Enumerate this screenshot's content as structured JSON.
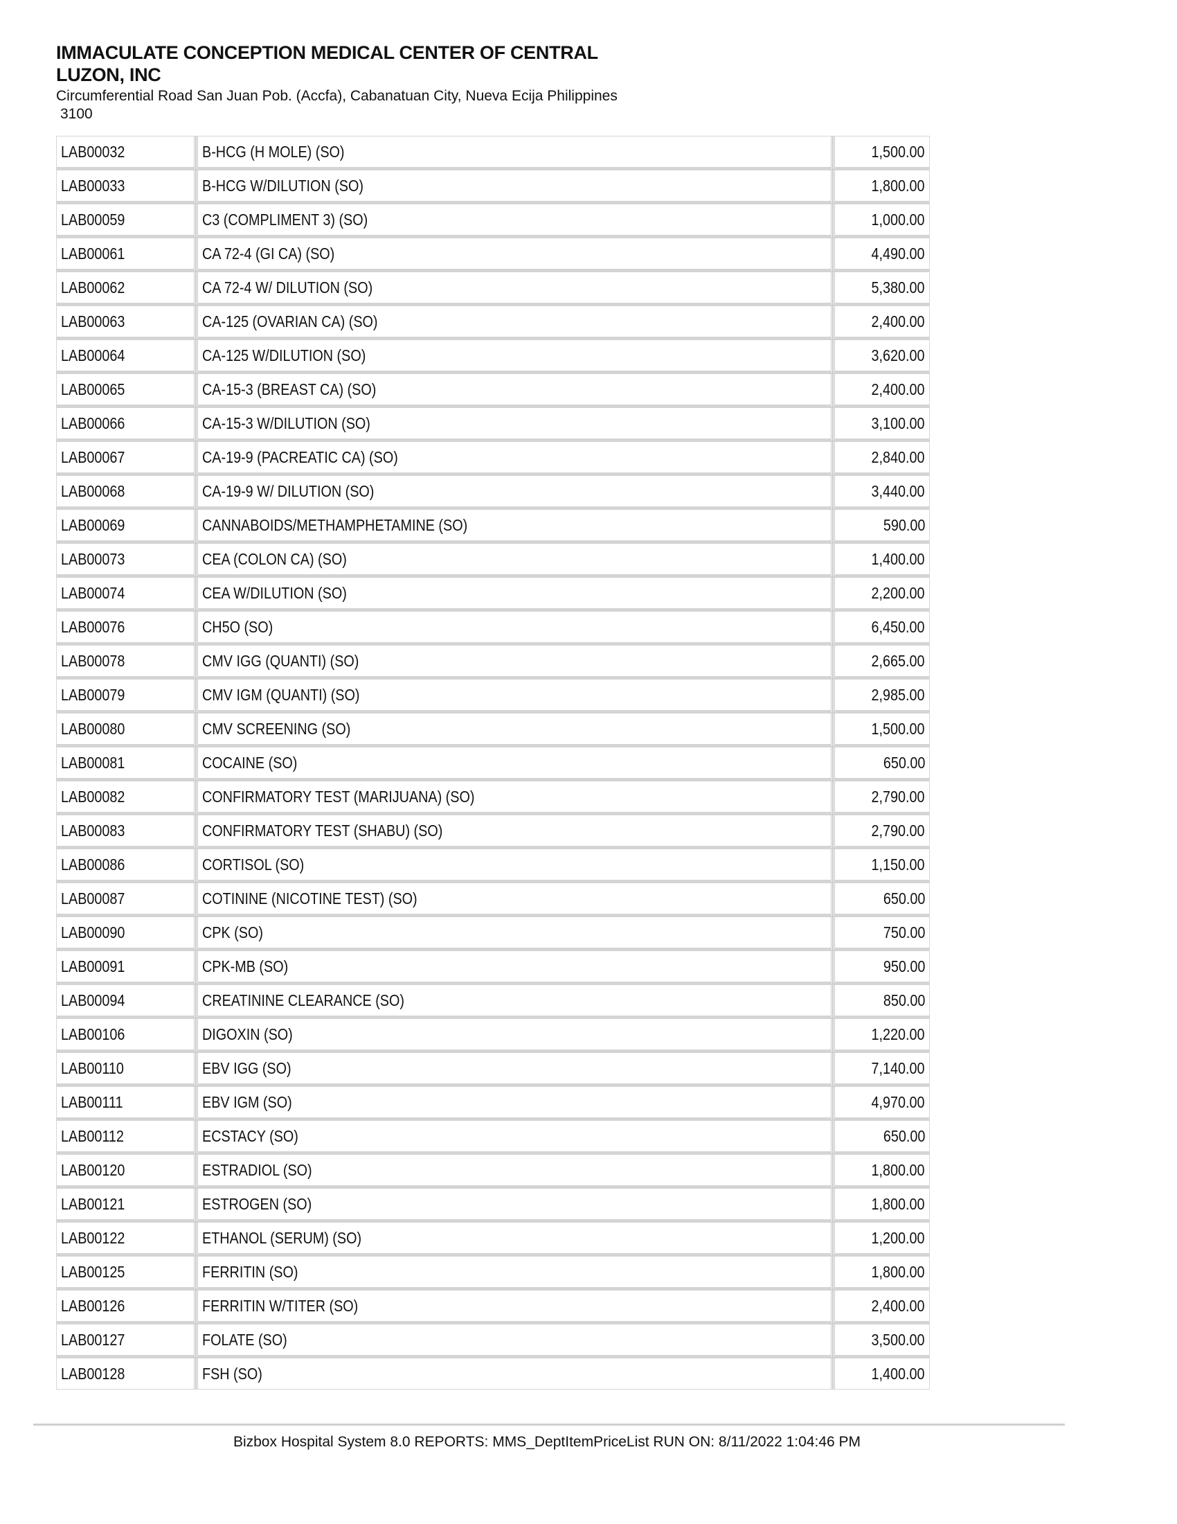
{
  "header": {
    "title": "IMMACULATE CONCEPTION MEDICAL CENTER OF CENTRAL LUZON, INC",
    "address": "Circumferential Road San Juan Pob. (Accfa), Cabanatuan City, Nueva Ecija Philippines",
    "zip": "3100"
  },
  "rows": [
    [
      "LAB00032",
      "B-HCG (H MOLE) (SO)",
      "1,500.00"
    ],
    [
      "LAB00033",
      "B-HCG W/DILUTION (SO)",
      "1,800.00"
    ],
    [
      "LAB00059",
      "C3 (COMPLIMENT 3) (SO)",
      "1,000.00"
    ],
    [
      "LAB00061",
      "CA 72-4 (GI CA) (SO)",
      "4,490.00"
    ],
    [
      "LAB00062",
      "CA 72-4 W/ DILUTION (SO)",
      "5,380.00"
    ],
    [
      "LAB00063",
      "CA-125 (OVARIAN CA) (SO)",
      "2,400.00"
    ],
    [
      "LAB00064",
      "CA-125 W/DILUTION  (SO)",
      "3,620.00"
    ],
    [
      "LAB00065",
      "CA-15-3 (BREAST CA)  (SO)",
      "2,400.00"
    ],
    [
      "LAB00066",
      "CA-15-3 W/DILUTION (SO)",
      "3,100.00"
    ],
    [
      "LAB00067",
      "CA-19-9 (PACREATIC CA) (SO)",
      "2,840.00"
    ],
    [
      "LAB00068",
      "CA-19-9 W/ DILUTION (SO)",
      "3,440.00"
    ],
    [
      "LAB00069",
      "CANNABOIDS/METHAMPHETAMINE (SO)",
      "590.00"
    ],
    [
      "LAB00073",
      "CEA (COLON CA) (SO)",
      "1,400.00"
    ],
    [
      "LAB00074",
      "CEA W/DILUTION (SO)",
      "2,200.00"
    ],
    [
      "LAB00076",
      "CH5O (SO)",
      "6,450.00"
    ],
    [
      "LAB00078",
      "CMV IGG (QUANTI) (SO)",
      "2,665.00"
    ],
    [
      "LAB00079",
      "CMV IGM (QUANTI) (SO)",
      "2,985.00"
    ],
    [
      "LAB00080",
      "CMV SCREENING (SO)",
      "1,500.00"
    ],
    [
      "LAB00081",
      "COCAINE (SO)",
      "650.00"
    ],
    [
      "LAB00082",
      "CONFIRMATORY TEST (MARIJUANA) (SO)",
      "2,790.00"
    ],
    [
      "LAB00083",
      "CONFIRMATORY TEST (SHABU) (SO)",
      "2,790.00"
    ],
    [
      "LAB00086",
      "CORTISOL (SO)",
      "1,150.00"
    ],
    [
      "LAB00087",
      "COTININE (NICOTINE TEST) (SO)",
      "650.00"
    ],
    [
      "LAB00090",
      "CPK (SO)",
      "750.00"
    ],
    [
      "LAB00091",
      "CPK-MB (SO)",
      "950.00"
    ],
    [
      "LAB00094",
      "CREATININE CLEARANCE (SO)",
      "850.00"
    ],
    [
      "LAB00106",
      "DIGOXIN (SO)",
      "1,220.00"
    ],
    [
      "LAB00110",
      "EBV IGG (SO)",
      "7,140.00"
    ],
    [
      "LAB00111",
      "EBV IGM (SO)",
      "4,970.00"
    ],
    [
      "LAB00112",
      "ECSTACY (SO)",
      "650.00"
    ],
    [
      "LAB00120",
      "ESTRADIOL (SO)",
      "1,800.00"
    ],
    [
      "LAB00121",
      "ESTROGEN (SO)",
      "1,800.00"
    ],
    [
      "LAB00122",
      "ETHANOL (SERUM) (SO)",
      "1,200.00"
    ],
    [
      "LAB00125",
      "FERRITIN (SO)",
      "1,800.00"
    ],
    [
      "LAB00126",
      "FERRITIN W/TITER (SO)",
      "2,400.00"
    ],
    [
      "LAB00127",
      "FOLATE (SO)",
      "3,500.00"
    ],
    [
      "LAB00128",
      "FSH (SO)",
      "1,400.00"
    ]
  ],
  "footer": {
    "text": "Bizbox Hospital System 8.0 REPORTS: MMS_DeptItemPriceList RUN ON: 8/11/2022 1:04:46 PM"
  }
}
